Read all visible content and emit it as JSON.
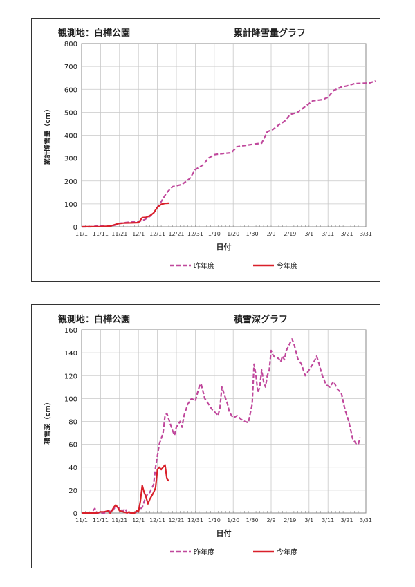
{
  "chart_data": [
    {
      "type": "line",
      "location": "観測地：白樺公園",
      "title": "累計降雪量グラフ",
      "xlabel": "日付",
      "ylabel": "累計降雪量（cm）",
      "ylim": [
        0,
        800
      ],
      "yticks": [
        "0",
        "100",
        "200",
        "300",
        "400",
        "500",
        "600",
        "700",
        "800"
      ],
      "xticks": [
        "11/1",
        "11/11",
        "11/21",
        "12/1",
        "12/11",
        "12/21",
        "12/31",
        "1/10",
        "1/20",
        "1/30",
        "2/9",
        "2/19",
        "3/1",
        "3/11",
        "3/21",
        "3/31"
      ],
      "grid": true,
      "legend": "bottom",
      "series": [
        {
          "name": "昨年度",
          "color": "#c0489c",
          "dash": true,
          "points": [
            [
              0,
              0
            ],
            [
              5,
              0
            ],
            [
              8,
              3
            ],
            [
              15,
              3
            ],
            [
              18,
              8
            ],
            [
              20,
              15
            ],
            [
              25,
              20
            ],
            [
              30,
              22
            ],
            [
              33,
              30
            ],
            [
              36,
              45
            ],
            [
              38,
              60
            ],
            [
              40,
              85
            ],
            [
              42,
              110
            ],
            [
              45,
              150
            ],
            [
              48,
              175
            ],
            [
              53,
              185
            ],
            [
              57,
              210
            ],
            [
              60,
              250
            ],
            [
              64,
              270
            ],
            [
              67,
              300
            ],
            [
              70,
              315
            ],
            [
              75,
              320
            ],
            [
              79,
              323
            ],
            [
              82,
              350
            ],
            [
              86,
              355
            ],
            [
              90,
              360
            ],
            [
              95,
              365
            ],
            [
              98,
              415
            ],
            [
              101,
              425
            ],
            [
              104,
              445
            ],
            [
              107,
              460
            ],
            [
              110,
              490
            ],
            [
              114,
              500
            ],
            [
              118,
              525
            ],
            [
              122,
              550
            ],
            [
              127,
              555
            ],
            [
              130,
              565
            ],
            [
              133,
              595
            ],
            [
              137,
              610
            ],
            [
              140,
              615
            ],
            [
              144,
              625
            ],
            [
              152,
              628
            ],
            [
              155,
              637
            ]
          ]
        },
        {
          "name": "今年度",
          "color": "#d9202a",
          "dash": false,
          "points": [
            [
              0,
              0
            ],
            [
              10,
              1
            ],
            [
              13,
              2
            ],
            [
              15,
              3
            ],
            [
              17,
              8
            ],
            [
              19,
              13
            ],
            [
              22,
              16
            ],
            [
              26,
              17
            ],
            [
              30,
              18
            ],
            [
              32,
              40
            ],
            [
              34,
              41
            ],
            [
              36,
              48
            ],
            [
              38,
              60
            ],
            [
              40,
              85
            ],
            [
              42,
              98
            ],
            [
              44,
              102
            ],
            [
              46,
              103
            ]
          ]
        }
      ]
    },
    {
      "type": "line",
      "location": "観測地：白樺公園",
      "title": "積雪深グラフ",
      "xlabel": "日付",
      "ylabel": "積雪深（cm）",
      "ylim": [
        0,
        160
      ],
      "yticks": [
        "0",
        "20",
        "40",
        "60",
        "80",
        "100",
        "120",
        "140",
        "160"
      ],
      "xticks": [
        "11/1",
        "11/11",
        "11/21",
        "12/1",
        "12/11",
        "12/21",
        "12/31",
        "1/10",
        "1/20",
        "1/30",
        "2/9",
        "2/19",
        "3/1",
        "3/11",
        "3/21",
        "3/31"
      ],
      "grid": true,
      "legend": "bottom",
      "series": [
        {
          "name": "昨年度",
          "color": "#c0489c",
          "dash": true,
          "points": [
            [
              6,
              2
            ],
            [
              7,
              4
            ],
            [
              8,
              0
            ],
            [
              12,
              0
            ],
            [
              14,
              2
            ],
            [
              16,
              1
            ],
            [
              18,
              6
            ],
            [
              20,
              4
            ],
            [
              22,
              2
            ],
            [
              23,
              4
            ],
            [
              24,
              0
            ],
            [
              28,
              0
            ],
            [
              30,
              2
            ],
            [
              32,
              5
            ],
            [
              34,
              15
            ],
            [
              36,
              18
            ],
            [
              38,
              25
            ],
            [
              39,
              40
            ],
            [
              40,
              50
            ],
            [
              41,
              60
            ],
            [
              43,
              70
            ],
            [
              44,
              85
            ],
            [
              45,
              87
            ],
            [
              46,
              82
            ],
            [
              48,
              72
            ],
            [
              49,
              68
            ],
            [
              50,
              75
            ],
            [
              52,
              80
            ],
            [
              53,
              75
            ],
            [
              54,
              85
            ],
            [
              56,
              95
            ],
            [
              58,
              100
            ],
            [
              60,
              98
            ],
            [
              62,
              110
            ],
            [
              63,
              113
            ],
            [
              65,
              100
            ],
            [
              67,
              95
            ],
            [
              69,
              90
            ],
            [
              71,
              87
            ],
            [
              72,
              85
            ],
            [
              73,
              92
            ],
            [
              74,
              110
            ],
            [
              75,
              105
            ],
            [
              77,
              95
            ],
            [
              78,
              88
            ],
            [
              80,
              83
            ],
            [
              82,
              85
            ],
            [
              84,
              82
            ],
            [
              86,
              80
            ],
            [
              88,
              79
            ],
            [
              90,
              95
            ],
            [
              91,
              130
            ],
            [
              92,
              120
            ],
            [
              93,
              105
            ],
            [
              94,
              110
            ],
            [
              95,
              125
            ],
            [
              96,
              115
            ],
            [
              97,
              110
            ],
            [
              98,
              120
            ],
            [
              99,
              125
            ],
            [
              100,
              142
            ],
            [
              101,
              138
            ],
            [
              102,
              136
            ],
            [
              104,
              135
            ],
            [
              105,
              132
            ],
            [
              106,
              137
            ],
            [
              107,
              134
            ],
            [
              108,
              142
            ],
            [
              109,
              145
            ],
            [
              111,
              152
            ],
            [
              112,
              148
            ],
            [
              114,
              135
            ],
            [
              116,
              130
            ],
            [
              118,
              120
            ],
            [
              120,
              125
            ],
            [
              122,
              130
            ],
            [
              124,
              137
            ],
            [
              125,
              132
            ],
            [
              127,
              120
            ],
            [
              129,
              112
            ],
            [
              131,
              110
            ],
            [
              133,
              115
            ],
            [
              135,
              108
            ],
            [
              137,
              105
            ],
            [
              139,
              90
            ],
            [
              141,
              80
            ],
            [
              143,
              65
            ],
            [
              145,
              60
            ],
            [
              146,
              60
            ],
            [
              147,
              66
            ]
          ]
        },
        {
          "name": "今年度",
          "color": "#d9202a",
          "dash": false,
          "points": [
            [
              0,
              0
            ],
            [
              8,
              0
            ],
            [
              10,
              1
            ],
            [
              12,
              1
            ],
            [
              14,
              2
            ],
            [
              15,
              0
            ],
            [
              16,
              2
            ],
            [
              17,
              5
            ],
            [
              18,
              7
            ],
            [
              19,
              5
            ],
            [
              20,
              2
            ],
            [
              22,
              1
            ],
            [
              24,
              0
            ],
            [
              25,
              1
            ],
            [
              26,
              0
            ],
            [
              28,
              0
            ],
            [
              29,
              2
            ],
            [
              30,
              1
            ],
            [
              31,
              10
            ],
            [
              32,
              24
            ],
            [
              33,
              18
            ],
            [
              34,
              14
            ],
            [
              35,
              8
            ],
            [
              36,
              12
            ],
            [
              37,
              15
            ],
            [
              38,
              18
            ],
            [
              39,
              22
            ],
            [
              40,
              38
            ],
            [
              41,
              40
            ],
            [
              42,
              38
            ],
            [
              43,
              40
            ],
            [
              44,
              42
            ],
            [
              45,
              30
            ],
            [
              46,
              28
            ]
          ]
        }
      ]
    }
  ]
}
